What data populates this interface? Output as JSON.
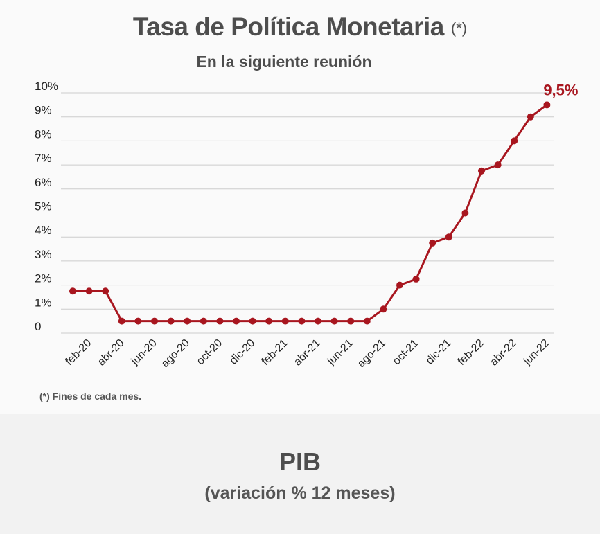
{
  "header": {
    "title": "Tasa de Política Monetaria",
    "title_note": "(*)",
    "subtitle": "En la siguiente reunión"
  },
  "footnote": "(*) Fines de cada mes.",
  "next_section": {
    "title": "PIB",
    "subtitle": "(variación % 12 meses)"
  },
  "colors": {
    "series": "#a8161f",
    "grid": "#cccccc",
    "text": "#4d4d4d"
  },
  "chart_data": {
    "type": "line",
    "title": "Tasa de Política Monetaria",
    "subtitle": "En la siguiente reunión",
    "xlabel": "",
    "ylabel": "",
    "ylim": [
      0,
      10
    ],
    "grid": true,
    "y_ticks": [
      "0",
      "1%",
      "2%",
      "3%",
      "4%",
      "5%",
      "6%",
      "7%",
      "8%",
      "9%",
      "10%"
    ],
    "x": [
      "ene-20",
      "feb-20",
      "mar-20",
      "abr-20",
      "may-20",
      "jun-20",
      "jul-20",
      "ago-20",
      "sep-20",
      "oct-20",
      "nov-20",
      "dic-20",
      "ene-21",
      "feb-21",
      "mar-21",
      "abr-21",
      "may-21",
      "jun-21",
      "jul-21",
      "ago-21",
      "sep-21",
      "oct-21",
      "nov-21",
      "dic-21",
      "ene-22",
      "feb-22",
      "mar-22",
      "abr-22",
      "may-22",
      "jun-22"
    ],
    "x_tick_labels": [
      "feb-20",
      "abr-20",
      "jun-20",
      "ago-20",
      "oct-20",
      "dic-20",
      "feb-21",
      "abr-21",
      "jun-21",
      "ago-21",
      "oct-21",
      "dic-21",
      "feb-22",
      "abr-22",
      "jun-22"
    ],
    "values": [
      1.75,
      1.75,
      1.75,
      0.5,
      0.5,
      0.5,
      0.5,
      0.5,
      0.5,
      0.5,
      0.5,
      0.5,
      0.5,
      0.5,
      0.5,
      0.5,
      0.5,
      0.5,
      0.5,
      1.0,
      2.0,
      2.25,
      3.75,
      4.0,
      5.0,
      6.75,
      7.0,
      8.0,
      9.0,
      9.5
    ],
    "last_label": "9,5%"
  }
}
